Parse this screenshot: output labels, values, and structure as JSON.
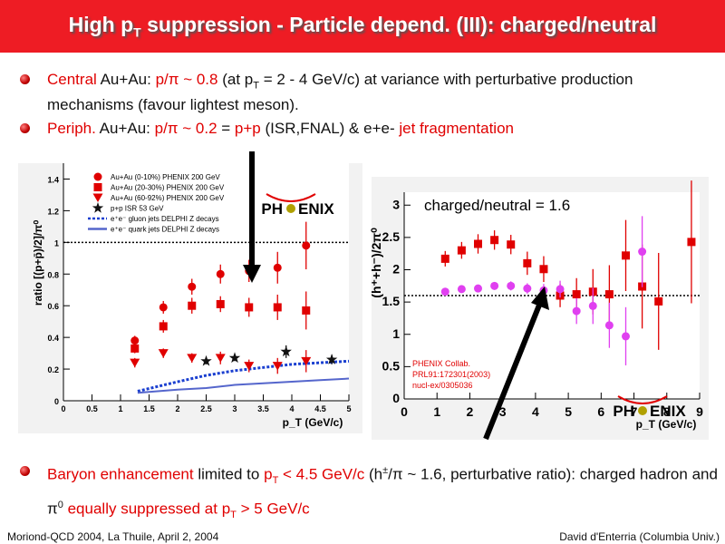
{
  "title": {
    "prefix": "High p",
    "sub": "T",
    "suffix": " suppression - Particle depend. (III): charged/neutral"
  },
  "bullets": [
    {
      "parts": [
        {
          "t": "Central",
          "c": "red"
        },
        {
          "t": " Au+Au: "
        },
        {
          "t": "p/π ~ 0.8",
          "c": "red"
        },
        {
          "t": " (at p"
        },
        {
          "t": "T",
          "s": "sub"
        },
        {
          "t": " = 2 - 4 GeV/c) at variance with perturbative production mechanisms (favour lightest meson)."
        }
      ]
    },
    {
      "parts": [
        {
          "t": "Periph.",
          "c": "red"
        },
        {
          "t": " Au+Au: "
        },
        {
          "t": "p/π ~ 0.2",
          "c": "red"
        },
        {
          "t": "  =  "
        },
        {
          "t": "p+p",
          "c": "red"
        },
        {
          "t": " (ISR,FNAL) & e+e- "
        },
        {
          "t": "jet fragmentation",
          "c": "red"
        }
      ]
    },
    {
      "parts": [
        {
          "t": "Baryon enhancement",
          "c": "red"
        },
        {
          "t": " limited to "
        },
        {
          "t": "p",
          "c": "red"
        },
        {
          "t": "T",
          "s": "sub",
          "c": "red"
        },
        {
          "t": " < 4.5 GeV/c",
          "c": "red"
        },
        {
          "t": " (h"
        },
        {
          "t": "±",
          "s": "sup"
        },
        {
          "t": "/π ~ 1.6, perturbative ratio): charged hadron and π"
        },
        {
          "t": "0",
          "s": "sup"
        },
        {
          "t": "  "
        },
        {
          "t": "equally suppressed at p",
          "c": "red"
        },
        {
          "t": "T",
          "s": "sub",
          "c": "red"
        },
        {
          "t": " > 5 GeV/c",
          "c": "red"
        }
      ]
    }
  ],
  "footer": {
    "left": "Moriond-QCD 2004, La Thuile, April 2, 2004",
    "right": "David d'Enterria (Columbia Univ.)"
  },
  "logo": {
    "left": "PH",
    "right": "ENIX",
    "icon": "phenix-bird-icon"
  },
  "colors": {
    "title_bg": "#ee1c24",
    "accent": "#e00000",
    "magenta": "#e040f0",
    "blue_line": "#3050d0"
  },
  "chart_data": [
    {
      "type": "scatter",
      "xlabel": "p_T (GeV/c)",
      "ylabel": "ratio [(p+p̄)/2]/π⁰",
      "xlim": [
        0,
        5
      ],
      "ylim": [
        0,
        1.5
      ],
      "xticks": [
        0,
        0.5,
        1,
        1.5,
        2,
        2.5,
        3,
        3.5,
        4,
        4.5,
        5
      ],
      "yticks": [
        0,
        0.2,
        0.4,
        0.6,
        0.8,
        1,
        1.2,
        1.4
      ],
      "reference_line_y": 1,
      "legend": [
        {
          "label": "Au+Au (0-10%) PHENIX 200 GeV",
          "marker": "circle",
          "color": "#e00000"
        },
        {
          "label": "Au+Au (20-30%) PHENIX 200 GeV",
          "marker": "square",
          "color": "#e00000"
        },
        {
          "label": "Au+Au (60-92%) PHENIX 200 GeV",
          "marker": "triangle-down",
          "color": "#e00000"
        },
        {
          "label": "p+p ISR 53 GeV",
          "marker": "star",
          "color": "#111111"
        },
        {
          "label": "e⁺e⁻ gluon jets DELPHI Z decays",
          "marker": "dashed-line",
          "color": "#1a3fd0"
        },
        {
          "label": "e⁺e⁻ quark jets DELPHI Z decays",
          "marker": "line",
          "color": "#5566cc"
        }
      ],
      "series": [
        {
          "marker": "circle",
          "x": [
            1.25,
            1.75,
            2.25,
            2.75,
            3.25,
            3.75,
            4.25
          ],
          "y": [
            0.38,
            0.59,
            0.72,
            0.8,
            0.82,
            0.84,
            0.98
          ],
          "err": [
            0.03,
            0.04,
            0.05,
            0.06,
            0.07,
            0.1,
            0.15
          ]
        },
        {
          "marker": "square",
          "x": [
            1.25,
            1.75,
            2.25,
            2.75,
            3.25,
            3.75,
            4.25
          ],
          "y": [
            0.33,
            0.47,
            0.6,
            0.61,
            0.59,
            0.59,
            0.57
          ],
          "err": [
            0.03,
            0.04,
            0.05,
            0.05,
            0.06,
            0.08,
            0.12
          ]
        },
        {
          "marker": "triangle-down",
          "x": [
            1.25,
            1.75,
            2.25,
            2.75,
            3.25,
            3.75,
            4.25
          ],
          "y": [
            0.24,
            0.3,
            0.27,
            0.27,
            0.22,
            0.22,
            0.25
          ],
          "err": [
            0.03,
            0.03,
            0.03,
            0.04,
            0.04,
            0.05,
            0.07
          ]
        },
        {
          "marker": "star",
          "x": [
            2.5,
            3.0,
            3.9,
            4.7
          ],
          "y": [
            0.25,
            0.27,
            0.31,
            0.26
          ],
          "err": [
            0.02,
            0.02,
            0.04,
            0.03
          ]
        }
      ],
      "lines": [
        {
          "style": "dashed",
          "x": [
            1.3,
            2.0,
            2.5,
            3.0,
            3.5,
            4.0,
            4.5,
            5.0
          ],
          "y": [
            0.06,
            0.12,
            0.16,
            0.19,
            0.21,
            0.23,
            0.24,
            0.25
          ]
        },
        {
          "style": "solid",
          "x": [
            1.3,
            2.0,
            2.5,
            3.0,
            3.5,
            4.0,
            4.5,
            5.0
          ],
          "y": [
            0.05,
            0.07,
            0.08,
            0.1,
            0.11,
            0.12,
            0.13,
            0.14
          ]
        }
      ],
      "logo": "PHENIX"
    },
    {
      "type": "scatter",
      "annotation": "charged/neutral = 1.6",
      "xlabel": "p_T  (GeV/c)",
      "ylabel": "(h⁺+h⁻)/2π⁰",
      "xlim": [
        0,
        9
      ],
      "ylim": [
        0,
        3.2
      ],
      "xticks": [
        0,
        1,
        2,
        3,
        4,
        5,
        6,
        7,
        8,
        9
      ],
      "yticks": [
        0,
        0.5,
        1,
        1.5,
        2,
        2.5,
        3
      ],
      "reference_line_y": 1.6,
      "citation": [
        "PHENIX Collab.",
        "PRL91:172301(2003)",
        "nucl-ex/0305036"
      ],
      "series": [
        {
          "marker": "square",
          "color": "#e00000",
          "x": [
            1.25,
            1.75,
            2.25,
            2.75,
            3.25,
            3.75,
            4.25,
            4.75,
            5.25,
            5.75,
            6.25,
            6.75,
            7.25,
            7.75,
            8.75
          ],
          "y": [
            2.17,
            2.3,
            2.4,
            2.46,
            2.39,
            2.1,
            2.01,
            1.6,
            1.62,
            1.66,
            1.62,
            2.22,
            1.74,
            1.51,
            2.43
          ],
          "err": [
            0.12,
            0.13,
            0.15,
            0.15,
            0.15,
            0.18,
            0.2,
            0.18,
            0.25,
            0.35,
            0.45,
            0.55,
            0.65,
            0.75,
            0.95
          ]
        },
        {
          "marker": "circle",
          "color": "#e040f0",
          "x": [
            1.25,
            1.75,
            2.25,
            2.75,
            3.25,
            3.75,
            4.25,
            4.75,
            5.25,
            5.75,
            6.25,
            6.75,
            7.25,
            7.75
          ],
          "y": [
            1.66,
            1.7,
            1.71,
            1.75,
            1.75,
            1.71,
            1.68,
            1.7,
            1.36,
            1.44,
            1.14,
            0.97,
            2.28,
            0.0
          ],
          "err": [
            0.05,
            0.05,
            0.05,
            0.06,
            0.07,
            0.08,
            0.1,
            0.13,
            0.2,
            0.28,
            0.35,
            0.45,
            0.55,
            0.0
          ]
        }
      ],
      "logo": "PHENIX"
    }
  ]
}
